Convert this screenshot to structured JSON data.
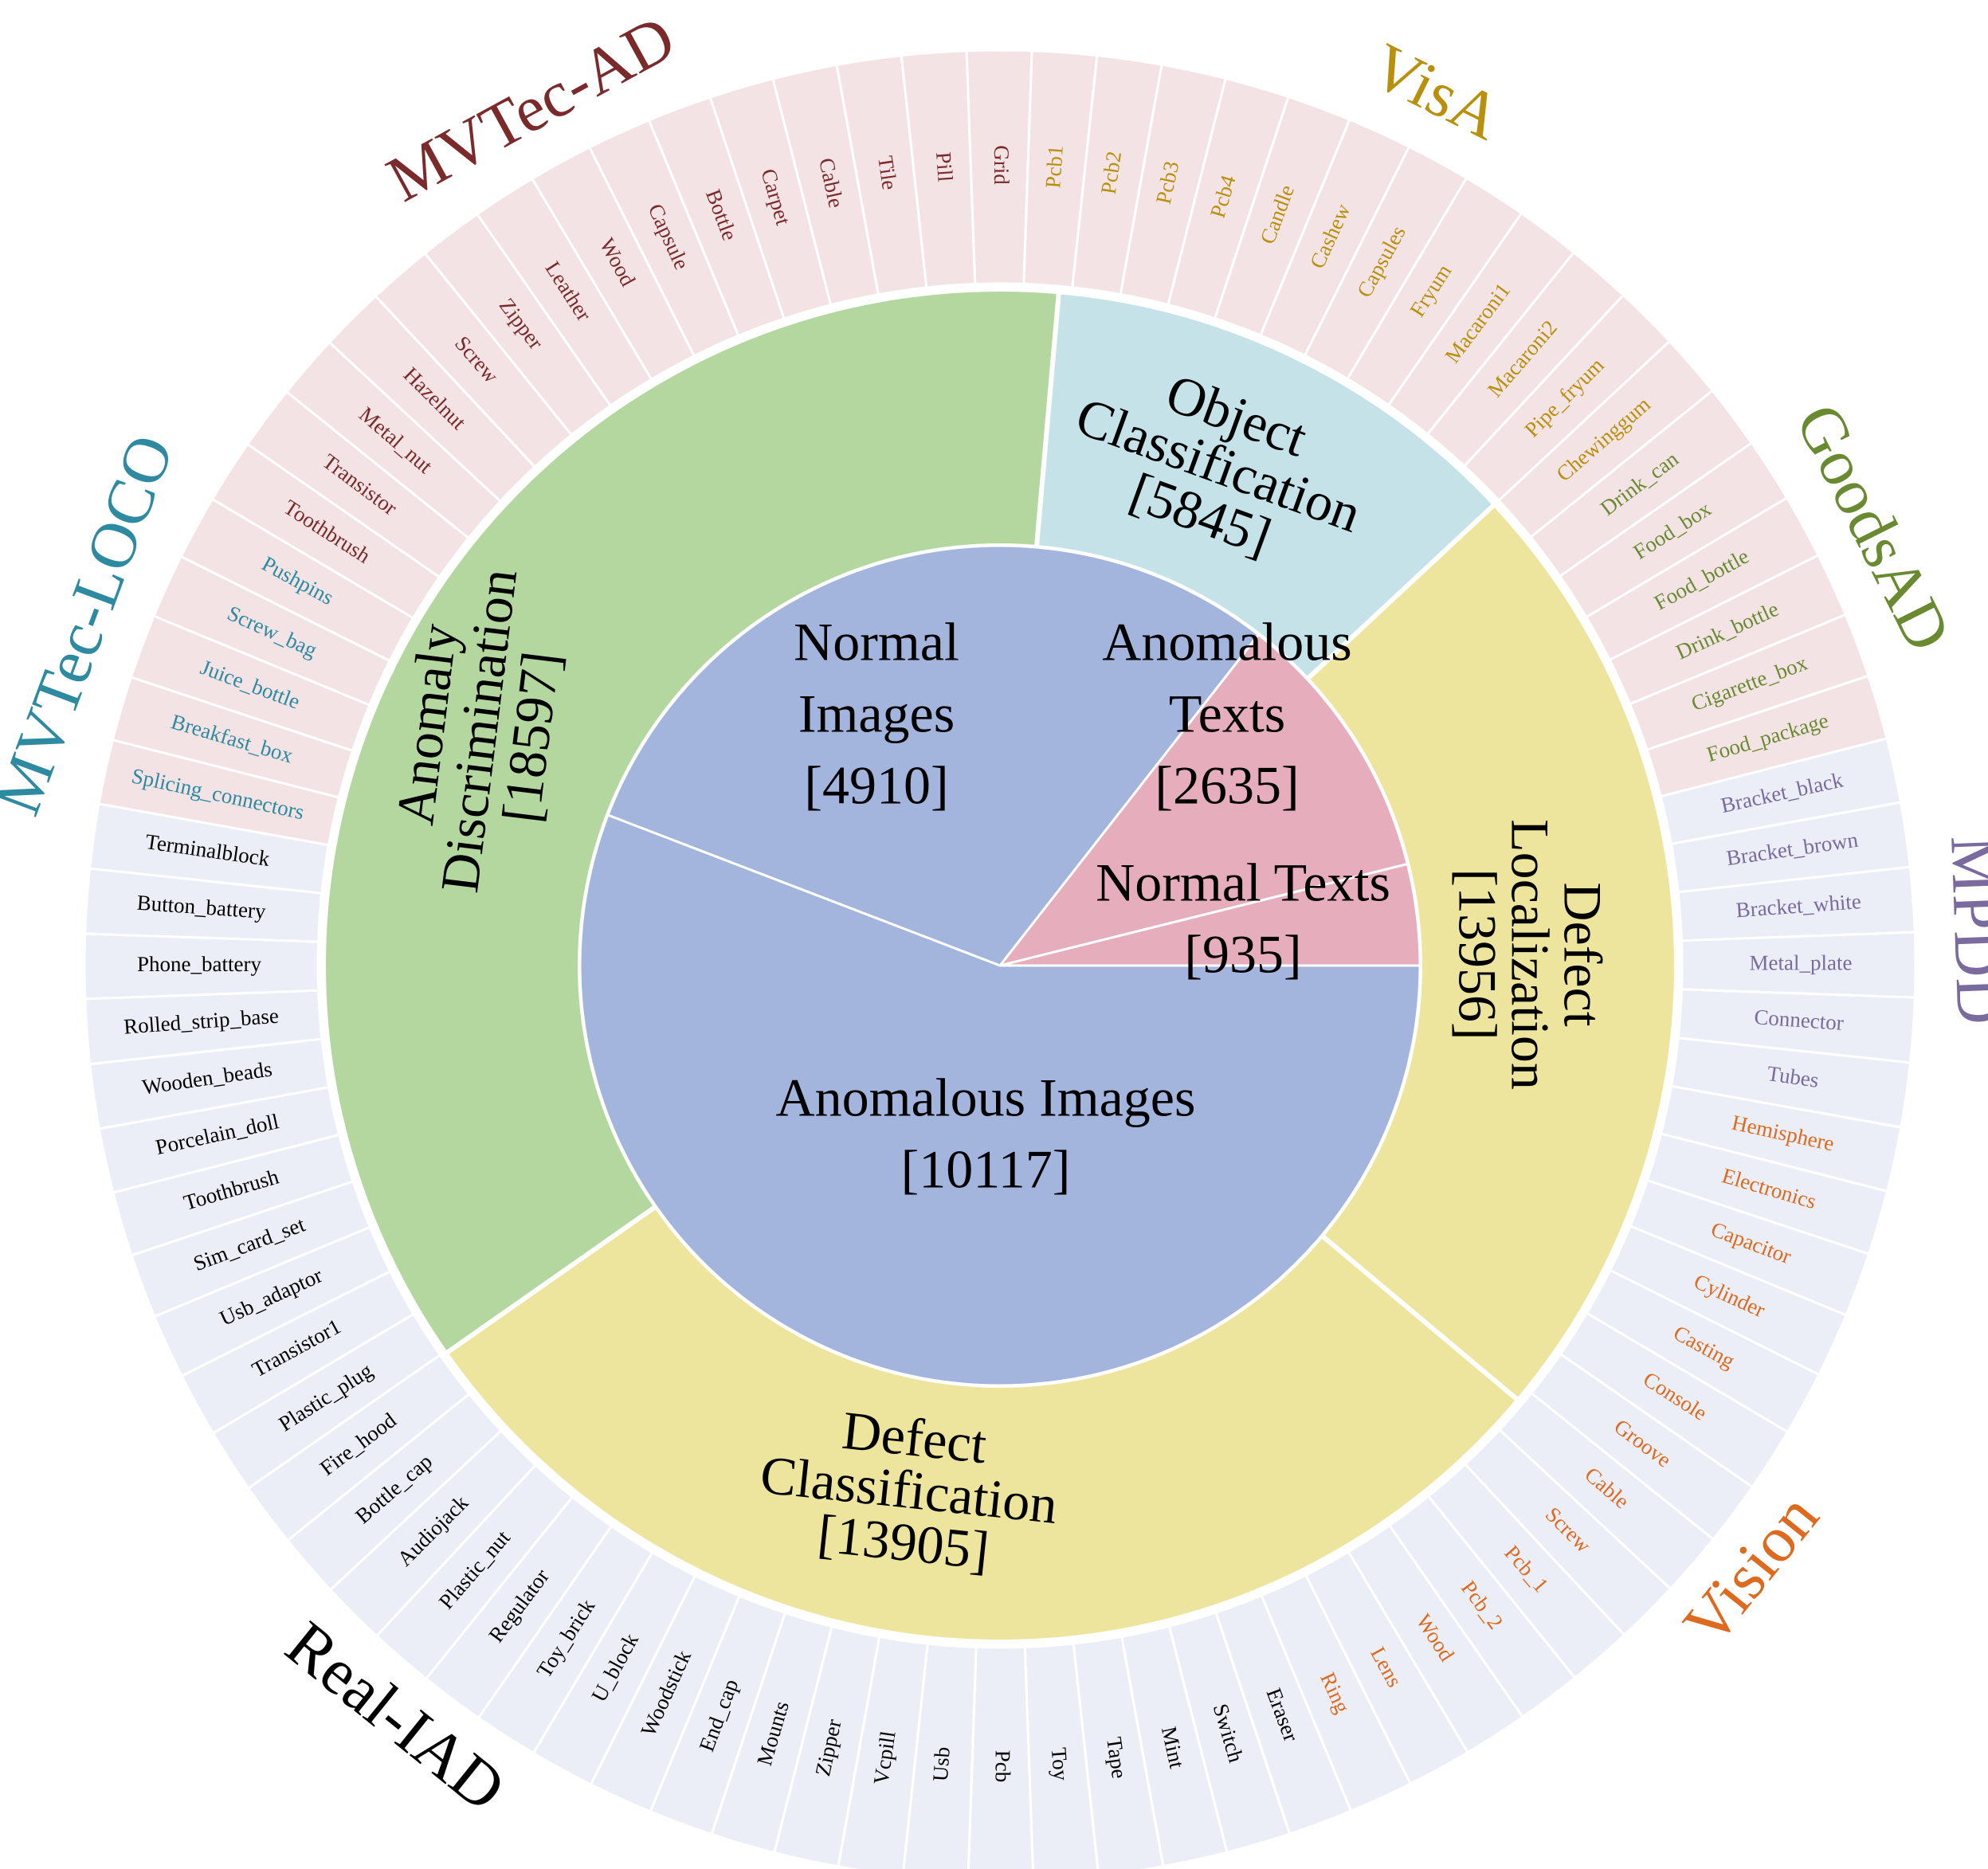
{
  "chart_data": {
    "type": "sunburst",
    "title": "",
    "colors": {
      "images": "#A3B5DC",
      "texts": "#E6AEBD",
      "anomaly_discrimination": "#B4D7A0",
      "object_classification": "#C4E2E8",
      "defect": "#EDE59E",
      "outer_industrial_pink": "#F3E3E4",
      "outer_industrial_blue": "#EBEEF6",
      "mvtec_ad": "#7A2A2A",
      "visa": "#B8900C",
      "goodsad": "#6A8A32",
      "mpdd": "#7A6A9E",
      "vision": "#DD6A1E",
      "realiad": "#000000",
      "loco": "#2E8AA0"
    },
    "inner_ring": [
      {
        "label": "Normal Images",
        "count": "[4910]",
        "value": 4910,
        "color_key": "images"
      },
      {
        "label": "Anomalous Texts",
        "count": "[2635]",
        "value": 2635,
        "color_key": "texts"
      },
      {
        "label": "Normal Texts",
        "count": "[935]",
        "value": 935,
        "color_key": "texts"
      },
      {
        "label": "Anomalous Images",
        "count": "[10117]",
        "value": 10117,
        "color_key": "images"
      }
    ],
    "middle_ring": [
      {
        "lines": [
          "Anomaly",
          "Discrimination"
        ],
        "count": "[18597]",
        "value": 18597,
        "color_key": "anomaly_discrimination"
      },
      {
        "lines": [
          "Object",
          "Classification"
        ],
        "count": "[5845]",
        "value": 5845,
        "color_key": "object_classification"
      },
      {
        "lines": [
          "Defect",
          "Localization"
        ],
        "count": "[13956]",
        "value": 13956,
        "color_key": "defect"
      },
      {
        "lines": [
          "Defect",
          "Classification"
        ],
        "count": "[13905]",
        "value": 13905,
        "color_key": "defect"
      }
    ],
    "datasets": [
      {
        "name": "MVTec-AD",
        "color_key": "mvtec_ad",
        "bg_key": "outer_industrial_pink",
        "categories": [
          "Toothbrush",
          "Transistor",
          "Metal_nut",
          "Hazelnut",
          "Screw",
          "Zipper",
          "Leather",
          "Wood",
          "Capsule",
          "Bottle",
          "Carpet",
          "Cable",
          "Tile",
          "Pill",
          "Grid"
        ]
      },
      {
        "name": "VisA",
        "color_key": "visa",
        "bg_key": "outer_industrial_pink",
        "categories": [
          "Pcb1",
          "Pcb2",
          "Pcb3",
          "Pcb4",
          "Candle",
          "Cashew",
          "Capsules",
          "Fryum",
          "Macaroni1",
          "Macaroni2",
          "Pipe_fryum",
          "Chewinggum"
        ]
      },
      {
        "name": "GoodsAD",
        "color_key": "goodsad",
        "bg_key": "outer_industrial_pink",
        "categories": [
          "Drink_can",
          "Food_box",
          "Food_bottle",
          "Drink_bottle",
          "Cigarette_box",
          "Food_package"
        ]
      },
      {
        "name": "MPDD",
        "color_key": "mpdd",
        "bg_key": "outer_industrial_blue",
        "categories": [
          "Bracket_black",
          "Bracket_brown",
          "Bracket_white",
          "Metal_plate",
          "Connector",
          "Tubes"
        ]
      },
      {
        "name": "Vision",
        "color_key": "vision",
        "bg_key": "outer_industrial_blue",
        "categories": [
          "Hemisphere",
          "Electronics",
          "Capacitor",
          "Cylinder",
          "Casting",
          "Console",
          "Groove",
          "Cable",
          "Screw",
          "Pcb_1",
          "Pcb_2",
          "Wood",
          "Lens",
          "Ring"
        ]
      },
      {
        "name": "Real-IAD",
        "color_key": "realiad",
        "bg_key": "outer_industrial_blue",
        "categories": [
          "Eraser",
          "Switch",
          "Mint",
          "Tape",
          "Toy",
          "Pcb",
          "Usb",
          "Vcpill",
          "Zipper",
          "Mounts",
          "End_cap",
          "Woodstick",
          "U_block",
          "Toy_brick",
          "Regulator",
          "Plastic_nut",
          "Audiojack",
          "Bottle_cap",
          "Fire_hood",
          "Plastic_plug",
          "Transistor1",
          "Usb_adaptor",
          "Sim_card_set",
          "Toothbrush",
          "Porcelain_doll",
          "Wooden_beads",
          "Rolled_strip_base",
          "Phone_battery",
          "Button_battery",
          "Terminalblock"
        ]
      },
      {
        "name": "MVTec-LOCO",
        "color_key": "loco",
        "bg_key": "outer_industrial_pink",
        "categories": [
          "Splicing_connectors",
          "Breakfast_box",
          "Juice_bottle",
          "Screw_bag",
          "Pushpins"
        ]
      }
    ]
  }
}
